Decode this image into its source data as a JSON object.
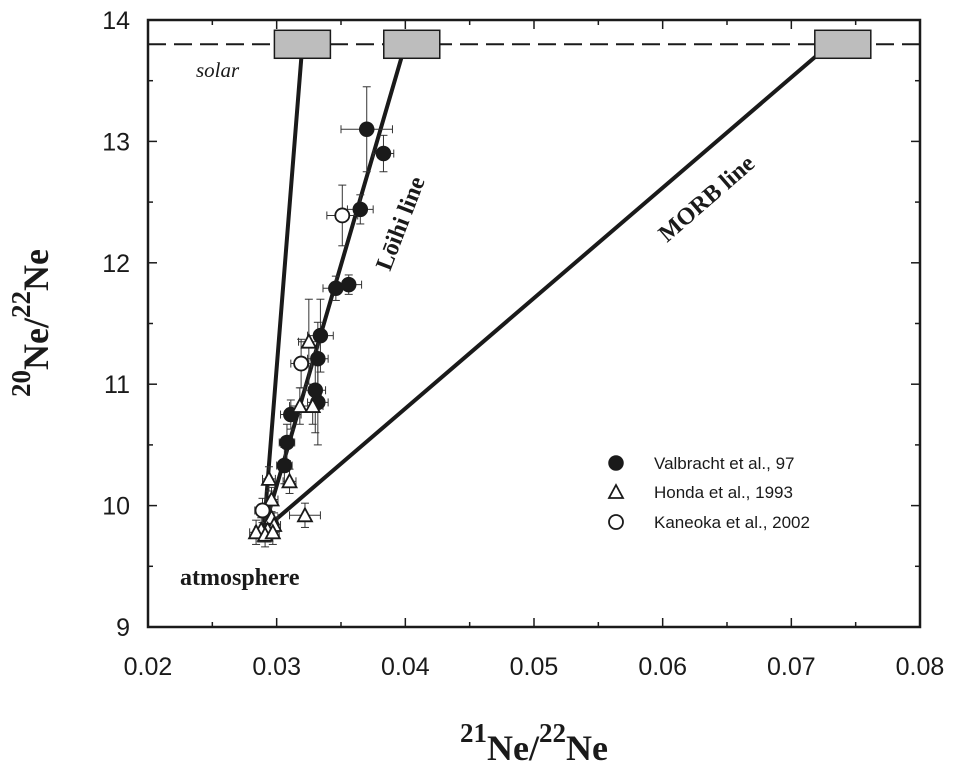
{
  "chart_data": {
    "type": "scatter",
    "x_axis": {
      "min": 0.02,
      "max": 0.08,
      "ticks": [
        0.02,
        0.03,
        0.04,
        0.05,
        0.06,
        0.07,
        0.08
      ],
      "tick_labels": [
        "0.02",
        "0.03",
        "0.04",
        "0.05",
        "0.06",
        "0.07",
        "0.08"
      ],
      "title_sup1": "21",
      "title_base1": "Ne/",
      "title_sup2": "22",
      "title_base2": "Ne"
    },
    "y_axis": {
      "min": 9,
      "max": 14,
      "ticks": [
        9,
        10,
        11,
        12,
        13,
        14
      ],
      "tick_labels": [
        "9",
        "10",
        "11",
        "12",
        "13",
        "14"
      ],
      "title_sup1": "20",
      "title_base1": "Ne/",
      "title_sup2": "22",
      "title_base2": "Ne"
    },
    "grid": false,
    "solar_line": {
      "y": 13.8,
      "label": "solar",
      "style": "dashed"
    },
    "solar_boxes": [
      {
        "x": 0.032,
        "y": 13.8
      },
      {
        "x": 0.0405,
        "y": 13.8
      },
      {
        "x": 0.074,
        "y": 13.8
      }
    ],
    "mixing_lines": [
      {
        "name": "steep",
        "from": [
          0.029,
          9.8
        ],
        "to": [
          0.032,
          13.8
        ],
        "label": ""
      },
      {
        "name": "loihi",
        "from": [
          0.029,
          9.8
        ],
        "to": [
          0.04,
          13.8
        ],
        "label": "Lōihi line"
      },
      {
        "name": "morb",
        "from": [
          0.029,
          9.8
        ],
        "to": [
          0.073,
          13.8
        ],
        "label": "MORB line"
      }
    ],
    "annotations": {
      "atmosphere": "atmosphere"
    },
    "legend": {
      "position": "lower-right",
      "entries": [
        {
          "label": "Valbracht et al., 97",
          "marker": "filled-circle"
        },
        {
          "label": "Honda et al., 1993",
          "marker": "open-triangle"
        },
        {
          "label": "Kaneoka et al., 2002",
          "marker": "open-circle"
        }
      ]
    },
    "series": [
      {
        "name": "Valbracht et al., 97",
        "marker": "filled-circle",
        "points": [
          {
            "x": 0.037,
            "y": 13.1,
            "xerr": 0.002,
            "yerr": 0.35
          },
          {
            "x": 0.0383,
            "y": 12.9,
            "xerr": 0.0008,
            "yerr": 0.15
          },
          {
            "x": 0.0365,
            "y": 12.44,
            "xerr": 0.001,
            "yerr": 0.12
          },
          {
            "x": 0.0356,
            "y": 11.82,
            "xerr": 0.001,
            "yerr": 0.08
          },
          {
            "x": 0.0346,
            "y": 11.79,
            "xerr": 0.001,
            "yerr": 0.1
          },
          {
            "x": 0.0334,
            "y": 11.4,
            "xerr": 0.001,
            "yerr": 0.3
          },
          {
            "x": 0.0332,
            "y": 11.21,
            "xerr": 0.0008,
            "yerr": 0.3
          },
          {
            "x": 0.033,
            "y": 10.95,
            "xerr": 0.0008,
            "yerr": 0.35
          },
          {
            "x": 0.0332,
            "y": 10.85,
            "xerr": 0.0008,
            "yerr": 0.35
          },
          {
            "x": 0.0311,
            "y": 10.75,
            "xerr": 0.0008,
            "yerr": 0.12
          },
          {
            "x": 0.0308,
            "y": 10.52,
            "xerr": 0.0006,
            "yerr": 0.15
          },
          {
            "x": 0.0306,
            "y": 10.33,
            "xerr": 0.0006,
            "yerr": 0.15
          }
        ]
      },
      {
        "name": "Honda et al., 1993",
        "marker": "open-triangle",
        "points": [
          {
            "x": 0.0325,
            "y": 11.35,
            "xerr": 0.0008,
            "yerr": 0.35
          },
          {
            "x": 0.0318,
            "y": 10.82,
            "xerr": 0.0008,
            "yerr": 0.15
          },
          {
            "x": 0.0328,
            "y": 10.82,
            "xerr": 0.0008,
            "yerr": 0.15
          },
          {
            "x": 0.0294,
            "y": 10.22,
            "xerr": 0.0005,
            "yerr": 0.1
          },
          {
            "x": 0.031,
            "y": 10.2,
            "xerr": 0.0005,
            "yerr": 0.1
          },
          {
            "x": 0.0296,
            "y": 10.05,
            "xerr": 0.0005,
            "yerr": 0.1
          },
          {
            "x": 0.0322,
            "y": 9.92,
            "xerr": 0.0012,
            "yerr": 0.1
          },
          {
            "x": 0.0296,
            "y": 9.9,
            "xerr": 0.0005,
            "yerr": 0.1
          },
          {
            "x": 0.0298,
            "y": 9.84,
            "xerr": 0.0005,
            "yerr": 0.1
          },
          {
            "x": 0.0293,
            "y": 9.8,
            "xerr": 0.0005,
            "yerr": 0.1
          },
          {
            "x": 0.0288,
            "y": 9.8,
            "xerr": 0.0005,
            "yerr": 0.1
          },
          {
            "x": 0.0284,
            "y": 9.78,
            "xerr": 0.0005,
            "yerr": 0.1
          },
          {
            "x": 0.0291,
            "y": 9.76,
            "xerr": 0.0005,
            "yerr": 0.1
          },
          {
            "x": 0.0297,
            "y": 9.78,
            "xerr": 0.0005,
            "yerr": 0.1
          }
        ]
      },
      {
        "name": "Kaneoka et al., 2002",
        "marker": "open-circle",
        "points": [
          {
            "x": 0.0351,
            "y": 12.39,
            "xerr": 0.0012,
            "yerr": 0.25
          },
          {
            "x": 0.0319,
            "y": 11.17,
            "xerr": 0.0008,
            "yerr": 0.2
          },
          {
            "x": 0.0289,
            "y": 9.96,
            "xerr": 0.0006,
            "yerr": 0.1
          }
        ]
      }
    ]
  }
}
